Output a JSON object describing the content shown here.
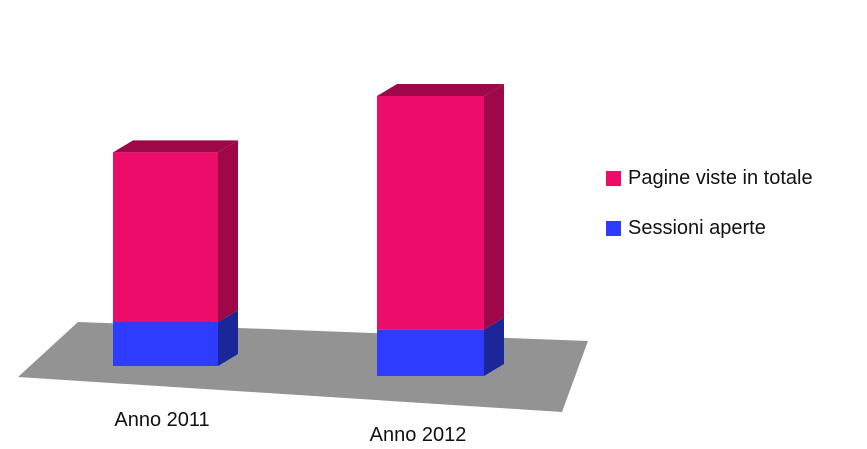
{
  "chart_data": {
    "type": "bar",
    "stacked": true,
    "three_d": true,
    "categories": [
      "Anno 2011",
      "Anno 2012"
    ],
    "series": [
      {
        "name": "Sessioni aperte",
        "values": [
          55,
          58
        ],
        "color": "#2e3cff",
        "side_color": "#1b2699"
      },
      {
        "name": "Pagine viste in totale",
        "values": [
          212,
          292
        ],
        "color": "#ec0d6b",
        "side_color": "#9e0848"
      }
    ],
    "title": "",
    "xlabel": "",
    "ylabel": "",
    "ylim": [
      0,
      360
    ],
    "grid": false,
    "legend_position": "right",
    "floor_color": "#939393"
  }
}
